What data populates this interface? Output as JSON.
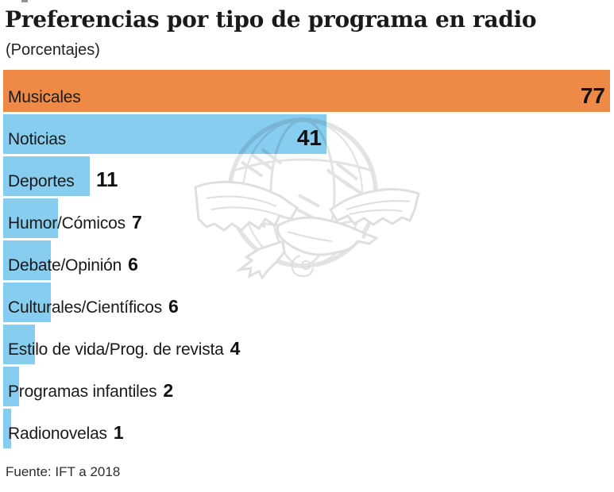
{
  "header": {
    "title": "Preferencias por tipo de programa en radio",
    "subtitle": "(Porcentajes)"
  },
  "footer": {
    "source": "Fuente: IFT a 2018"
  },
  "colors": {
    "highlight_bar": "#EF8A46",
    "bar": "#87CDEF",
    "title_text": "#1A1A1A",
    "label_text": "#1A1A1A",
    "value_text": "#111111",
    "source_text": "#2E2E2E",
    "watermark": "#E3E3E3",
    "background": "#FFFFFF"
  },
  "watermark": {
    "icon": "eagle-over-globe-watermark"
  },
  "chart_data": {
    "type": "bar",
    "orientation": "horizontal",
    "title": "Preferencias por tipo de programa en radio",
    "subtitle": "(Porcentajes)",
    "source": "Fuente: IFT a 2018",
    "unit": "percent",
    "xlim": [
      0,
      77
    ],
    "grid": false,
    "legend": false,
    "categories": [
      "Musicales",
      "Noticias",
      "Deportes",
      "Humor/Cómicos",
      "Debate/Opinión",
      "Culturales/Científicos",
      "Estilo de vida/Prog. de revista",
      "Programas infantiles",
      "Radionovelas"
    ],
    "values": [
      77,
      41,
      11,
      7,
      6,
      6,
      4,
      2,
      1
    ],
    "bars": [
      {
        "label": "Musicales",
        "value": 77,
        "color": "#EF8A46",
        "value_position": "inside-right"
      },
      {
        "label": "Noticias",
        "value": 41,
        "color": "#87CDEF",
        "value_position": "inside-right"
      },
      {
        "label": "Deportes",
        "value": 11,
        "color": "#87CDEF",
        "value_position": "after-bar"
      },
      {
        "label": "Humor/Cómicos",
        "value": 7,
        "color": "#87CDEF",
        "value_position": "after-label"
      },
      {
        "label": "Debate/Opinión",
        "value": 6,
        "color": "#87CDEF",
        "value_position": "after-label"
      },
      {
        "label": "Culturales/Científicos",
        "value": 6,
        "color": "#87CDEF",
        "value_position": "after-label"
      },
      {
        "label": "Estilo de vida/Prog. de revista",
        "value": 4,
        "color": "#87CDEF",
        "value_position": "after-label"
      },
      {
        "label": "Programas infantiles",
        "value": 2,
        "color": "#87CDEF",
        "value_position": "after-label"
      },
      {
        "label": "Radionovelas",
        "value": 1,
        "color": "#87CDEF",
        "value_position": "after-label"
      }
    ]
  }
}
